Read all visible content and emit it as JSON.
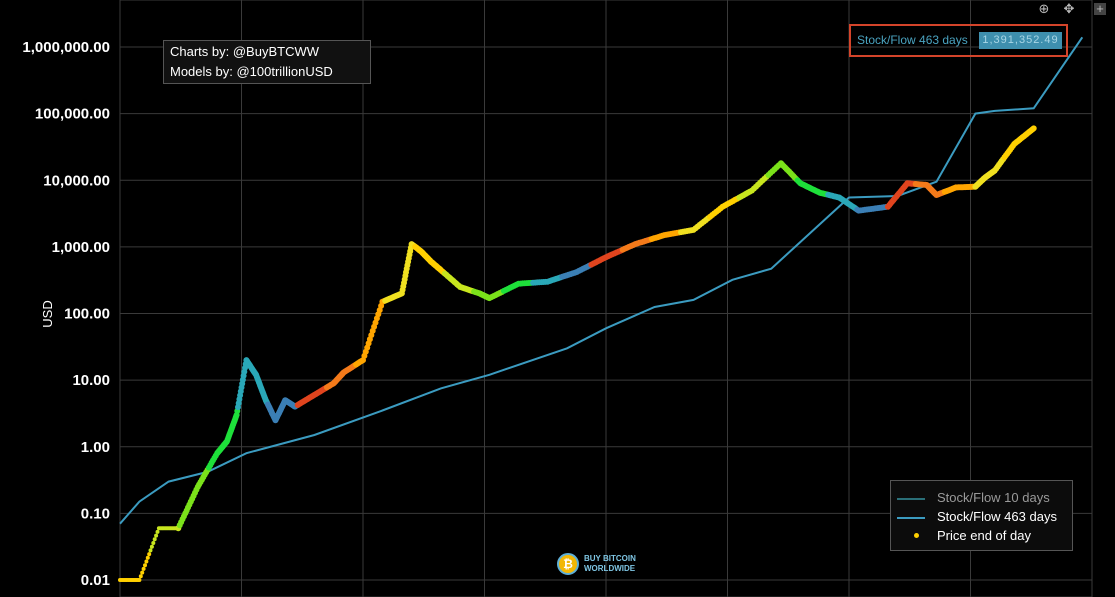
{
  "chart_data": {
    "type": "scatter",
    "y_scale": "log",
    "ylabel": "USD",
    "ylim": [
      0.01,
      1000000
    ],
    "y_ticks": [
      "1,000,000.00",
      "100,000.00",
      "10,000.00",
      "1,000.00",
      "100.00",
      "10.00",
      "1.00",
      "0.10",
      "0.01"
    ],
    "y_tick_values": [
      1000000,
      100000,
      10000,
      1000,
      100,
      10,
      1,
      0.1,
      0.01
    ],
    "grid": true,
    "legend_placement": "bottom-right",
    "series": [
      {
        "name": "Stock/Flow 10 days",
        "kind": "line",
        "color": "#2a6f78",
        "visible": false
      },
      {
        "name": "Stock/Flow 463 days",
        "kind": "line",
        "color": "#3b9bc0",
        "x": [
          0,
          0.02,
          0.05,
          0.09,
          0.13,
          0.2,
          0.27,
          0.33,
          0.38,
          0.46,
          0.5,
          0.55,
          0.59,
          0.63,
          0.67,
          0.75,
          0.8,
          0.84,
          0.88,
          0.9,
          0.94,
          0.99
        ],
        "y": [
          0.07,
          0.15,
          0.3,
          0.42,
          0.8,
          1.5,
          3.5,
          7.5,
          12,
          30,
          60,
          125,
          160,
          320,
          470,
          5500,
          5800,
          9500,
          100000,
          110000,
          120000,
          1400000
        ]
      },
      {
        "name": "Price end of day",
        "kind": "scatter",
        "color": "#ffd000",
        "x": [
          0,
          0.02,
          0.04,
          0.06,
          0.08,
          0.1,
          0.11,
          0.12,
          0.13,
          0.14,
          0.15,
          0.16,
          0.17,
          0.18,
          0.2,
          0.22,
          0.23,
          0.25,
          0.27,
          0.29,
          0.3,
          0.31,
          0.32,
          0.33,
          0.35,
          0.37,
          0.38,
          0.41,
          0.44,
          0.47,
          0.5,
          0.53,
          0.56,
          0.59,
          0.62,
          0.65,
          0.68,
          0.7,
          0.72,
          0.74,
          0.76,
          0.79,
          0.81,
          0.83,
          0.84,
          0.86,
          0.88,
          0.89,
          0.9,
          0.92,
          0.94
        ],
        "y": [
          0.01,
          0.01,
          0.06,
          0.06,
          0.25,
          0.8,
          1.2,
          3,
          20,
          12,
          5,
          2.5,
          5,
          4,
          6,
          9,
          13,
          20,
          150,
          200,
          1100,
          850,
          600,
          450,
          250,
          200,
          170,
          280,
          300,
          420,
          700,
          1100,
          1500,
          1800,
          4000,
          7000,
          18000,
          9000,
          6500,
          5500,
          3500,
          4000,
          9000,
          8500,
          6000,
          7800,
          8000,
          11000,
          14000,
          35000,
          60000
        ]
      }
    ]
  },
  "credits": {
    "line1": "Charts by: @BuyBTCWW",
    "line2": "Models by: @100trillionUSD"
  },
  "hover": {
    "name": "Stock/Flow 463 days",
    "value": "1,391,352.49"
  },
  "watermark": {
    "line1": "BUY BITCOIN",
    "line2": "WORLDWIDE",
    "coin": "₿"
  },
  "icons": {
    "zoom": "zoom-icon",
    "pan": "pan-icon",
    "expand": "expand-icon"
  }
}
